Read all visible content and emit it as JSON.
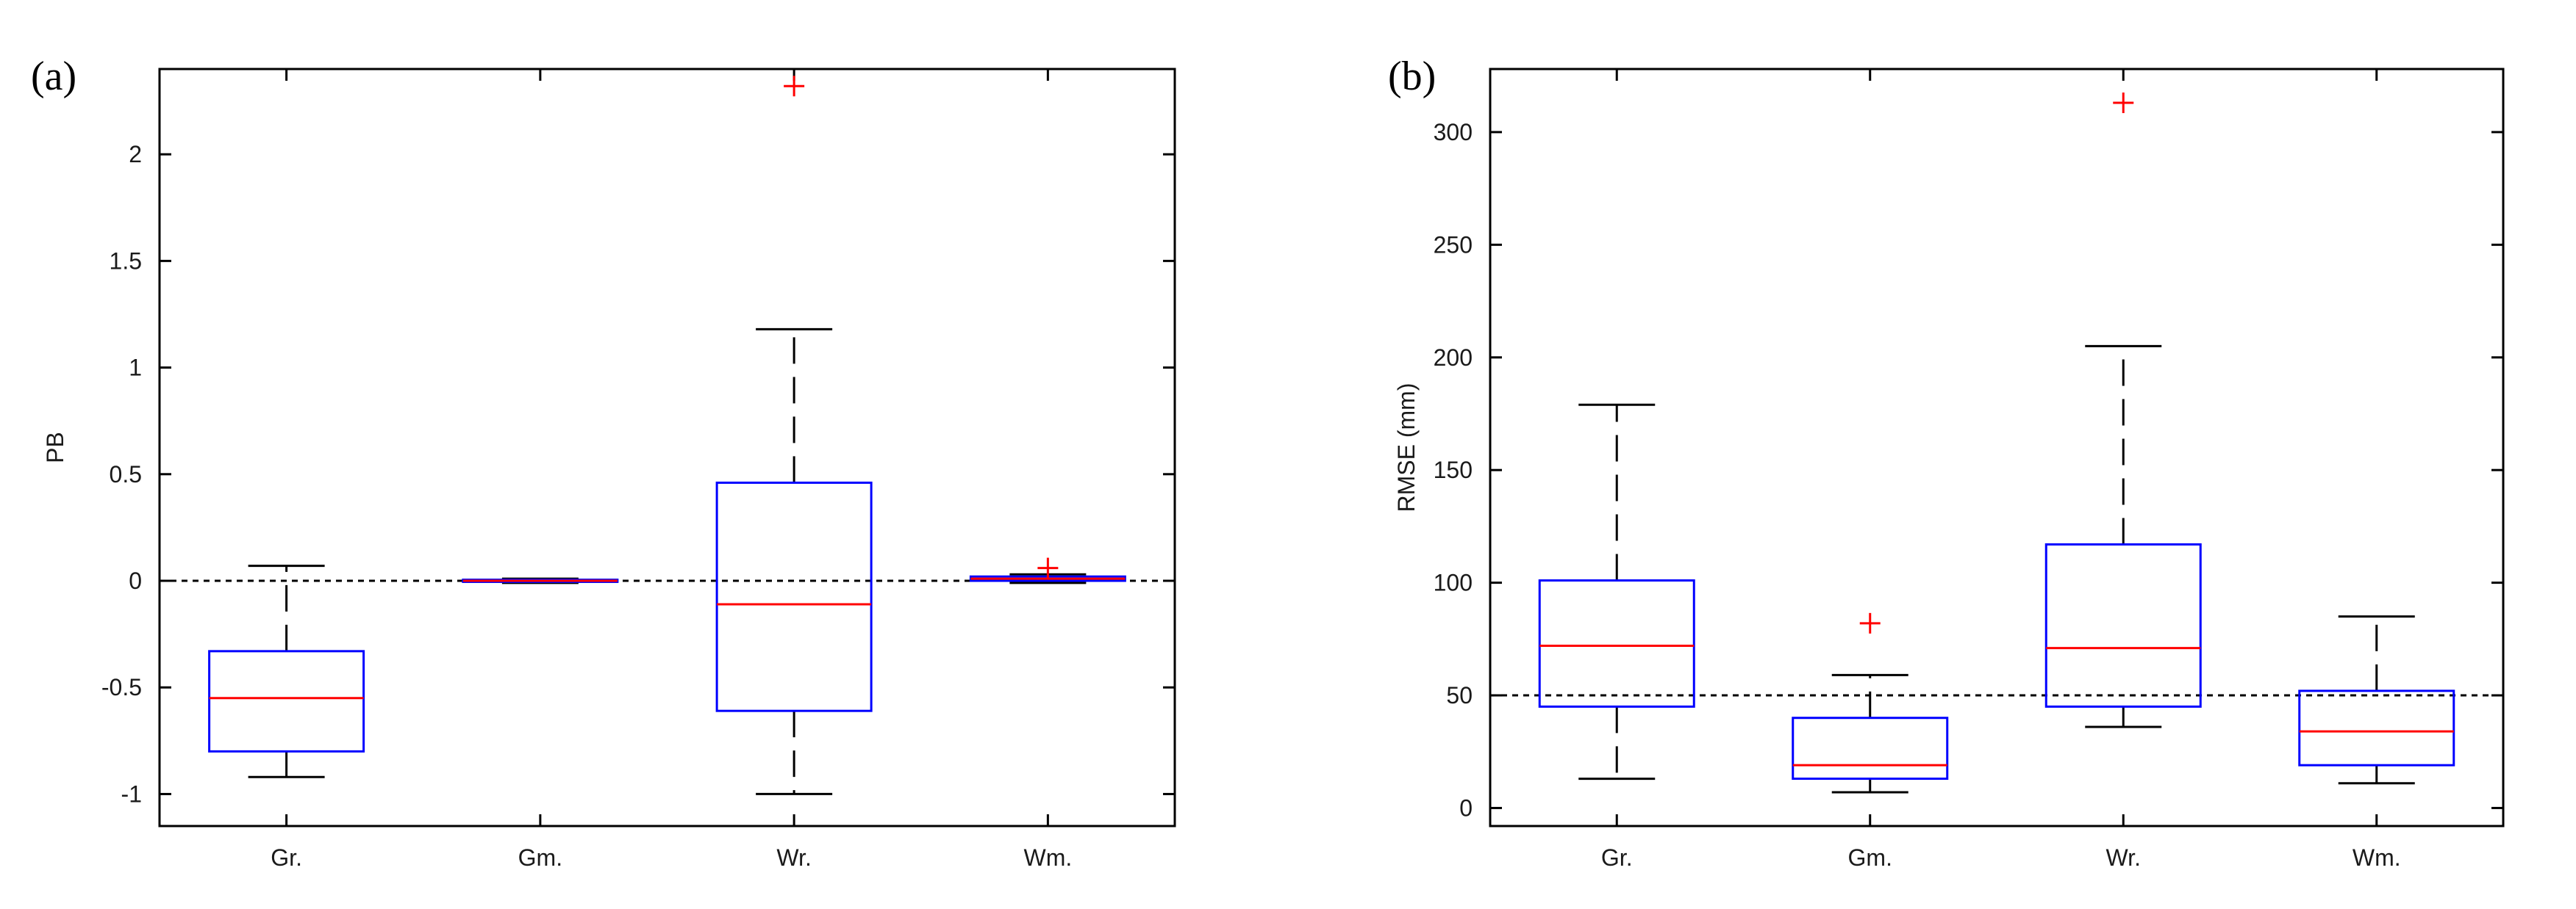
{
  "colors": {
    "box": "#0000ff",
    "median": "#ff0000",
    "outlier": "#ff0000",
    "whisker": "#000000",
    "axis": "#000000",
    "reference": "#000000"
  },
  "chart_data": [
    {
      "type": "boxplot",
      "panel_label": "(a)",
      "title": "",
      "xlabel": "",
      "ylabel": "PB",
      "categories": [
        "Gr.",
        "Gm.",
        "Wr.",
        "Wm."
      ],
      "ylim": [
        -1.15,
        2.4
      ],
      "yticks": [
        -1,
        -0.5,
        0,
        0.5,
        1,
        1.5,
        2
      ],
      "ytick_labels": [
        "-1",
        "-0.5",
        "0",
        "0.5",
        "1",
        "1.5",
        "2"
      ],
      "reference_line": 0,
      "boxes": [
        {
          "category": "Gr.",
          "whisker_low": -0.92,
          "q1": -0.8,
          "median": -0.55,
          "q3": -0.33,
          "whisker_high": 0.07,
          "outliers": []
        },
        {
          "category": "Gm.",
          "whisker_low": -0.01,
          "q1": -0.005,
          "median": 0.0,
          "q3": 0.005,
          "whisker_high": 0.01,
          "outliers": []
        },
        {
          "category": "Wr.",
          "whisker_low": -1.0,
          "q1": -0.61,
          "median": -0.11,
          "q3": 0.46,
          "whisker_high": 1.18,
          "outliers": [
            2.32
          ]
        },
        {
          "category": "Wm.",
          "whisker_low": -0.01,
          "q1": 0.0,
          "median": 0.01,
          "q3": 0.02,
          "whisker_high": 0.03,
          "outliers": [
            0.06
          ]
        }
      ]
    },
    {
      "type": "boxplot",
      "panel_label": "(b)",
      "title": "",
      "xlabel": "",
      "ylabel": "RMSE (mm)",
      "categories": [
        "Gr.",
        "Gm.",
        "Wr.",
        "Wm."
      ],
      "ylim": [
        -8,
        328
      ],
      "yticks": [
        0,
        50,
        100,
        150,
        200,
        250,
        300
      ],
      "ytick_labels": [
        "0",
        "50",
        "100",
        "150",
        "200",
        "250",
        "300"
      ],
      "reference_line": 50,
      "boxes": [
        {
          "category": "Gr.",
          "whisker_low": 13,
          "q1": 45,
          "median": 72,
          "q3": 101,
          "whisker_high": 179,
          "outliers": []
        },
        {
          "category": "Gm.",
          "whisker_low": 7,
          "q1": 13,
          "median": 19,
          "q3": 40,
          "whisker_high": 59,
          "outliers": [
            82
          ]
        },
        {
          "category": "Wr.",
          "whisker_low": 36,
          "q1": 45,
          "median": 71,
          "q3": 117,
          "whisker_high": 205,
          "outliers": [
            313
          ]
        },
        {
          "category": "Wm.",
          "whisker_low": 11,
          "q1": 19,
          "median": 34,
          "q3": 52,
          "whisker_high": 85,
          "outliers": []
        }
      ]
    }
  ]
}
